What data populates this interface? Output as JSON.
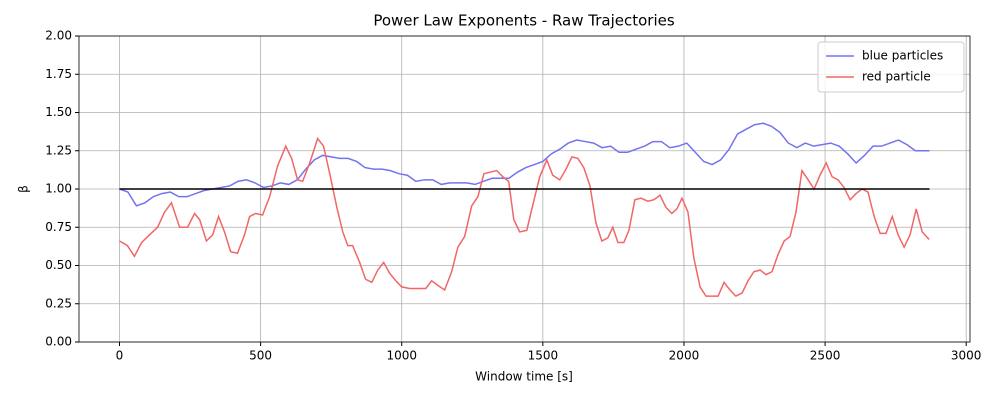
{
  "chart_data": {
    "type": "line",
    "title": "Power Law Exponents - Raw Trajectories",
    "x_label": "Window time [s]",
    "y_label": "β",
    "xlim": [
      -143.5,
      3013.5
    ],
    "ylim": [
      0,
      2
    ],
    "xticks": [
      0,
      500,
      1000,
      1500,
      2000,
      2500,
      3000
    ],
    "yticks": [
      {
        "value": 0,
        "label": "0.00"
      },
      {
        "value": 0.25,
        "label": "0.25"
      },
      {
        "value": 0.5,
        "label": "0.50"
      },
      {
        "value": 0.75,
        "label": "0.75"
      },
      {
        "value": 1,
        "label": "1.00"
      },
      {
        "value": 1.25,
        "label": "1.25"
      },
      {
        "value": 1.5,
        "label": "1.50"
      },
      {
        "value": 1.75,
        "label": "1.75"
      },
      {
        "value": 2,
        "label": "2.00"
      }
    ],
    "grid": true,
    "legend": "upper right",
    "series": [
      {
        "name": "blue particles",
        "color": "#7373f2",
        "x": [
          0,
          30,
          60,
          90,
          120,
          150,
          180,
          210,
          240,
          270,
          300,
          330,
          360,
          390,
          420,
          450,
          480,
          510,
          540,
          570,
          600,
          630,
          660,
          690,
          720,
          750,
          780,
          810,
          840,
          870,
          900,
          930,
          960,
          990,
          1020,
          1050,
          1080,
          1110,
          1140,
          1170,
          1200,
          1230,
          1260,
          1290,
          1320,
          1350,
          1380,
          1410,
          1440,
          1470,
          1500,
          1530,
          1560,
          1590,
          1620,
          1650,
          1680,
          1710,
          1740,
          1770,
          1800,
          1830,
          1860,
          1890,
          1920,
          1950,
          1980,
          2010,
          2040,
          2070,
          2100,
          2130,
          2160,
          2190,
          2220,
          2250,
          2280,
          2310,
          2340,
          2370,
          2400,
          2430,
          2460,
          2490,
          2520,
          2550,
          2580,
          2610,
          2640,
          2670,
          2700,
          2730,
          2760,
          2790,
          2820,
          2850,
          2870
        ],
        "values": [
          1.0,
          0.98,
          0.89,
          0.91,
          0.95,
          0.97,
          0.98,
          0.95,
          0.95,
          0.97,
          0.99,
          1.0,
          1.01,
          1.02,
          1.05,
          1.06,
          1.04,
          1.01,
          1.02,
          1.04,
          1.03,
          1.06,
          1.13,
          1.19,
          1.22,
          1.21,
          1.2,
          1.2,
          1.18,
          1.14,
          1.13,
          1.13,
          1.12,
          1.1,
          1.09,
          1.05,
          1.06,
          1.06,
          1.03,
          1.04,
          1.04,
          1.04,
          1.03,
          1.05,
          1.07,
          1.07,
          1.07,
          1.11,
          1.14,
          1.16,
          1.18,
          1.23,
          1.26,
          1.3,
          1.32,
          1.31,
          1.3,
          1.27,
          1.28,
          1.24,
          1.24,
          1.26,
          1.28,
          1.31,
          1.31,
          1.27,
          1.28,
          1.3,
          1.24,
          1.18,
          1.16,
          1.19,
          1.26,
          1.36,
          1.39,
          1.42,
          1.43,
          1.41,
          1.37,
          1.3,
          1.27,
          1.3,
          1.28,
          1.29,
          1.3,
          1.28,
          1.23,
          1.17,
          1.22,
          1.28,
          1.28,
          1.3,
          1.32,
          1.29,
          1.25,
          1.25,
          1.25
        ]
      },
      {
        "name": "red particle",
        "color": "#f26666",
        "x": [
          0,
          28,
          53,
          78,
          106,
          135,
          160,
          184,
          213,
          241,
          266,
          284,
          308,
          330,
          351,
          372,
          394,
          418,
          443,
          461,
          482,
          507,
          532,
          560,
          589,
          610,
          631,
          649,
          674,
          702,
          723,
          745,
          770,
          791,
          809,
          826,
          851,
          872,
          894,
          915,
          936,
          957,
          979,
          1000,
          1028,
          1057,
          1085,
          1106,
          1128,
          1152,
          1177,
          1199,
          1223,
          1248,
          1270,
          1291,
          1312,
          1337,
          1358,
          1379,
          1397,
          1418,
          1443,
          1465,
          1489,
          1514,
          1535,
          1560,
          1582,
          1603,
          1624,
          1645,
          1667,
          1688,
          1709,
          1730,
          1748,
          1766,
          1787,
          1805,
          1826,
          1848,
          1872,
          1894,
          1915,
          1936,
          1957,
          1975,
          1993,
          2014,
          2035,
          2057,
          2078,
          2099,
          2121,
          2142,
          2163,
          2184,
          2206,
          2227,
          2248,
          2270,
          2291,
          2312,
          2333,
          2355,
          2376,
          2397,
          2418,
          2440,
          2461,
          2482,
          2504,
          2525,
          2546,
          2567,
          2589,
          2610,
          2631,
          2652,
          2674,
          2695,
          2716,
          2738,
          2759,
          2780,
          2801,
          2823,
          2844,
          2869
        ],
        "values": [
          0.66,
          0.63,
          0.56,
          0.65,
          0.7,
          0.75,
          0.85,
          0.91,
          0.75,
          0.75,
          0.84,
          0.8,
          0.66,
          0.7,
          0.82,
          0.72,
          0.59,
          0.58,
          0.7,
          0.82,
          0.84,
          0.83,
          0.95,
          1.15,
          1.28,
          1.2,
          1.06,
          1.05,
          1.17,
          1.33,
          1.28,
          1.1,
          0.88,
          0.72,
          0.63,
          0.63,
          0.52,
          0.41,
          0.39,
          0.47,
          0.52,
          0.45,
          0.4,
          0.36,
          0.35,
          0.35,
          0.35,
          0.4,
          0.37,
          0.34,
          0.46,
          0.62,
          0.69,
          0.89,
          0.95,
          1.1,
          1.11,
          1.12,
          1.08,
          1.05,
          0.8,
          0.72,
          0.73,
          0.9,
          1.08,
          1.19,
          1.09,
          1.06,
          1.13,
          1.21,
          1.2,
          1.14,
          1.02,
          0.78,
          0.66,
          0.68,
          0.75,
          0.65,
          0.65,
          0.73,
          0.93,
          0.94,
          0.92,
          0.93,
          0.96,
          0.88,
          0.84,
          0.87,
          0.94,
          0.85,
          0.55,
          0.36,
          0.3,
          0.3,
          0.3,
          0.39,
          0.34,
          0.3,
          0.32,
          0.4,
          0.46,
          0.47,
          0.44,
          0.46,
          0.57,
          0.66,
          0.69,
          0.85,
          1.12,
          1.06,
          1.0,
          1.09,
          1.17,
          1.08,
          1.06,
          1.01,
          0.93,
          0.97,
          1.0,
          0.98,
          0.82,
          0.71,
          0.71,
          0.82,
          0.7,
          0.62,
          0.7,
          0.87,
          0.72,
          0.67
        ]
      },
      {
        "color": "#000000",
        "x": [
          0,
          2870
        ],
        "values": [
          1,
          1
        ]
      }
    ]
  }
}
